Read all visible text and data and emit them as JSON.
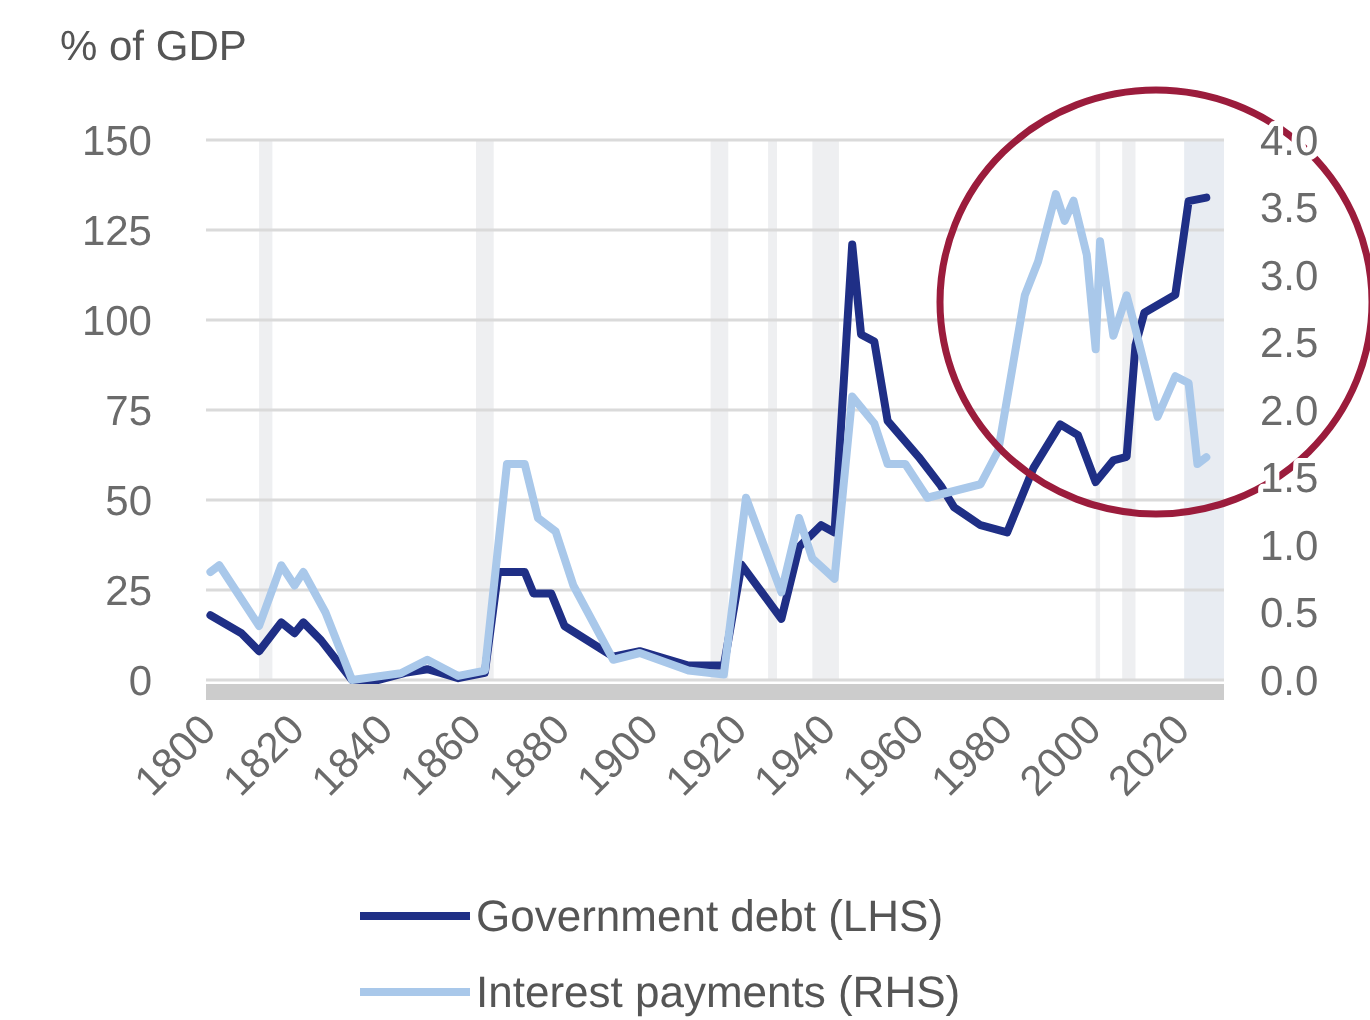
{
  "chart_data": {
    "type": "line",
    "ylabel": "% of GDP",
    "xlim": [
      1800,
      2030
    ],
    "xticks": [
      1800,
      1820,
      1840,
      1860,
      1880,
      1900,
      1920,
      1940,
      1960,
      1980,
      2000,
      2020
    ],
    "ylim": [
      0,
      150
    ],
    "yticks": [
      0,
      25,
      50,
      75,
      100,
      125,
      150
    ],
    "y2lim": [
      0,
      4
    ],
    "y2ticks": [
      {
        "value": 0,
        "label": "0.0"
      },
      {
        "value": 0.5,
        "label": "0.5"
      },
      {
        "value": 1,
        "label": "1.0"
      },
      {
        "value": 1.5,
        "label": "1.5"
      },
      {
        "value": 2,
        "label": "2.0"
      },
      {
        "value": 2.5,
        "label": "2.5"
      },
      {
        "value": 3,
        "label": "3.0"
      },
      {
        "value": 3.5,
        "label": "3.5"
      },
      {
        "value": 4,
        "label": "4.0"
      }
    ],
    "grid": "y",
    "legend": "bottom",
    "series": [
      {
        "name": "Government debt (LHS)",
        "color": "#1f2f86",
        "x": [
          1801,
          1808,
          1812,
          1817,
          1820,
          1822,
          1826,
          1833,
          1839,
          1845,
          1850,
          1853,
          1857,
          1863,
          1866,
          1872,
          1874,
          1878,
          1881,
          1892,
          1898,
          1909,
          1917,
          1921,
          1930,
          1934,
          1939,
          1942,
          1946,
          1948,
          1951,
          1954,
          1961,
          1966,
          1969,
          1975,
          1981,
          1987,
          1993,
          1997,
          2001,
          2005,
          2008,
          2010,
          2012,
          2019,
          2022,
          2026
        ],
        "values": [
          18,
          13,
          8,
          16,
          13,
          16,
          11,
          0,
          0,
          2,
          3,
          2,
          0.5,
          2,
          30,
          30,
          24,
          24,
          15,
          6.5,
          8,
          4,
          4,
          32,
          17,
          37,
          43,
          41,
          121,
          96,
          94,
          72,
          62,
          54,
          48,
          43,
          41,
          59,
          71,
          68,
          55,
          61,
          62,
          93,
          102,
          107,
          133,
          134
        ]
      },
      {
        "name": "Interest payments (RHS)",
        "color": "#a9c8ea",
        "axis": "y2",
        "x": [
          1801,
          1803,
          1808,
          1812,
          1817,
          1820,
          1822,
          1827,
          1833,
          1844,
          1850,
          1857,
          1863,
          1868,
          1872,
          1875,
          1879,
          1883,
          1892,
          1898,
          1909,
          1917,
          1922,
          1930,
          1934,
          1937,
          1942,
          1946,
          1951,
          1954,
          1958,
          1963,
          1969,
          1975,
          1979,
          1985,
          1988,
          1992,
          1994,
          1996,
          1999,
          2001,
          2002,
          2005,
          2008,
          2010,
          2015,
          2019,
          2022,
          2024,
          2026
        ],
        "values": [
          0.8,
          0.85,
          0.6,
          0.4,
          0.85,
          0.7,
          0.8,
          0.5,
          0,
          0.05,
          0.15,
          0.03,
          0.07,
          1.6,
          1.6,
          1.2,
          1.1,
          0.7,
          0.15,
          0.2,
          0.07,
          0.04,
          1.35,
          0.65,
          1.2,
          0.9,
          0.75,
          2.1,
          1.9,
          1.6,
          1.6,
          1.35,
          1.4,
          1.45,
          1.7,
          2.85,
          3.1,
          3.6,
          3.4,
          3.55,
          3.15,
          2.45,
          3.25,
          2.55,
          2.85,
          2.6,
          1.95,
          2.25,
          2.2,
          1.6,
          1.65
        ]
      }
    ],
    "bands": [
      {
        "axis": "x",
        "from": 1812,
        "to": 1815,
        "color": "#eeeff1"
      },
      {
        "axis": "x",
        "from": 1861,
        "to": 1865,
        "color": "#eeeff1"
      },
      {
        "axis": "x",
        "from": 1914,
        "to": 1918,
        "color": "#eeeff1"
      },
      {
        "axis": "x",
        "from": 1927,
        "to": 1929,
        "color": "#eeeff1"
      },
      {
        "axis": "x",
        "from": 1937,
        "to": 1943,
        "color": "#eeeff1"
      },
      {
        "axis": "x",
        "from": 2001,
        "to": 2002,
        "color": "#eeeff1"
      },
      {
        "axis": "x",
        "from": 2007,
        "to": 2010,
        "color": "#eeeff1"
      },
      {
        "axis": "x",
        "from": 2021,
        "to": 2030,
        "color": "#e8ecf2"
      }
    ]
  }
}
